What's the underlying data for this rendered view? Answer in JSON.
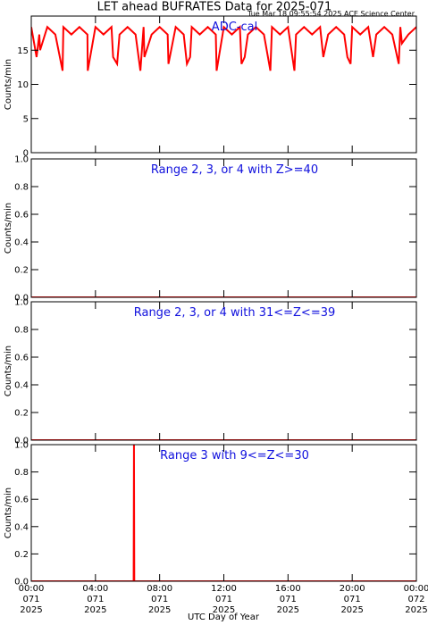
{
  "title": "LET ahead BUFRATES Data for 2025-071",
  "timestamp": "Tue Mar 18 09:55:54 2025 ACE Science Center",
  "x_label": "UTC Day of Year",
  "chart_data": [
    {
      "type": "line",
      "annotation": "ADC-cal",
      "y_label": "Counts/min",
      "color": "#ff0000",
      "xlim": [
        0,
        24
      ],
      "xticks": [
        0,
        4,
        8,
        12,
        16,
        20,
        24
      ],
      "ylim": [
        0,
        20
      ],
      "yticks": [
        0,
        5,
        10,
        15
      ],
      "x": [
        0,
        0.33,
        0.5,
        0.55,
        1,
        1.5,
        1.95,
        2,
        2.5,
        3,
        3.5,
        3.52,
        4,
        4.5,
        5,
        5.1,
        5.35,
        5.5,
        6,
        6.5,
        6.8,
        7,
        7.05,
        7.5,
        8,
        8.5,
        8.55,
        9,
        9.5,
        9.7,
        9.9,
        10,
        10.5,
        11,
        11.5,
        11.55,
        12,
        12.5,
        13,
        13.1,
        13.3,
        13.5,
        14,
        14.5,
        14.9,
        15,
        15.5,
        16,
        16.4,
        16.5,
        17,
        17.5,
        18,
        18.2,
        18.5,
        19,
        19.5,
        19.7,
        19.9,
        20,
        20.5,
        21,
        21.3,
        21.5,
        22,
        22.5,
        22.9,
        23,
        23.1,
        23.5,
        24
      ],
      "values": [
        18.4,
        14,
        17.3,
        15,
        18.4,
        17.3,
        12,
        18.4,
        17.3,
        18.4,
        17.3,
        12,
        18.4,
        17.3,
        18.4,
        14,
        13,
        17.3,
        18.4,
        17.3,
        12,
        18.4,
        14,
        17.3,
        18.4,
        17.3,
        13,
        18.4,
        17.3,
        13,
        14,
        18.4,
        17.3,
        18.4,
        17.3,
        12,
        18.4,
        17.3,
        18.4,
        13,
        14,
        17.3,
        18.4,
        17.3,
        12,
        18.4,
        17.3,
        18.4,
        12,
        17.3,
        18.4,
        17.3,
        18.4,
        14,
        17.3,
        18.4,
        17.3,
        14,
        13,
        18.4,
        17.3,
        18.4,
        14,
        17.3,
        18.4,
        17.3,
        13,
        18.4,
        16,
        17.3,
        18.4
      ]
    },
    {
      "type": "line",
      "annotation": "Range 2, 3, or 4 with Z>=40",
      "y_label": "Counts/min",
      "color": "#ff0000",
      "xlim": [
        0,
        24
      ],
      "xticks": [
        0,
        4,
        8,
        12,
        16,
        20,
        24
      ],
      "ylim": [
        0,
        1
      ],
      "yticks": [
        {
          "value": 0,
          "label": "0.0"
        },
        {
          "value": 0.2,
          "label": "0.2"
        },
        {
          "value": 0.4,
          "label": "0.4"
        },
        {
          "value": 0.6,
          "label": "0.6"
        },
        {
          "value": 0.8,
          "label": "0.8"
        },
        {
          "value": 1,
          "label": "1.0"
        }
      ],
      "x": [
        0,
        24
      ],
      "values": [
        0,
        0
      ]
    },
    {
      "type": "line",
      "annotation": "Range 2, 3, or 4 with 31<=Z<=39",
      "y_label": "Counts/min",
      "color": "#ff0000",
      "xlim": [
        0,
        24
      ],
      "xticks": [
        0,
        4,
        8,
        12,
        16,
        20,
        24
      ],
      "ylim": [
        0,
        1
      ],
      "yticks": [
        {
          "value": 0,
          "label": "0.0"
        },
        {
          "value": 0.2,
          "label": "0.2"
        },
        {
          "value": 0.4,
          "label": "0.4"
        },
        {
          "value": 0.6,
          "label": "0.6"
        },
        {
          "value": 0.8,
          "label": "0.8"
        },
        {
          "value": 1,
          "label": "1.0"
        }
      ],
      "x": [
        0,
        24
      ],
      "values": [
        0,
        0
      ]
    },
    {
      "type": "line",
      "annotation": "Range 3 with 9<=Z<=30",
      "y_label": "Counts/min",
      "color": "#ff0000",
      "xlim": [
        0,
        24
      ],
      "xticks": [
        {
          "value": 0,
          "label": "00:00\n071\n2025"
        },
        {
          "value": 4,
          "label": "04:00\n071\n2025"
        },
        {
          "value": 8,
          "label": "08:00\n071\n2025"
        },
        {
          "value": 12,
          "label": "12:00\n071\n2025"
        },
        {
          "value": 16,
          "label": "16:00\n071\n2025"
        },
        {
          "value": 20,
          "label": "20:00\n071\n2025"
        },
        {
          "value": 24,
          "label": "00:00\n072\n2025"
        }
      ],
      "ylim": [
        0,
        1
      ],
      "yticks": [
        {
          "value": 0,
          "label": "0.0"
        },
        {
          "value": 0.2,
          "label": "0.2"
        },
        {
          "value": 0.4,
          "label": "0.4"
        },
        {
          "value": 0.6,
          "label": "0.6"
        },
        {
          "value": 0.8,
          "label": "0.8"
        },
        {
          "value": 1,
          "label": "1.0"
        }
      ],
      "x": [
        0,
        6.38,
        6.4,
        6.42,
        24
      ],
      "values": [
        0,
        0,
        1,
        0,
        0
      ]
    }
  ]
}
